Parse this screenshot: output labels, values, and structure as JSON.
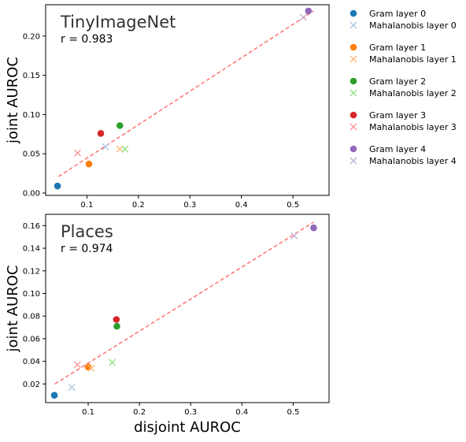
{
  "chart_data": [
    {
      "type": "scatter",
      "title": "TinyImageNet",
      "annotation": "r = 0.983",
      "xlabel": "",
      "ylabel": "joint AUROC",
      "xlim": [
        0.02,
        0.57
      ],
      "ylim": [
        -0.003,
        0.24
      ],
      "xticks": [
        0.1,
        0.2,
        0.3,
        0.4,
        0.5
      ],
      "xtick_labels": [
        "0.1",
        "0.2",
        "0.3",
        "0.4",
        "0.5"
      ],
      "yticks": [
        0.0,
        0.05,
        0.1,
        0.15,
        0.2
      ],
      "ytick_labels": [
        "0.00",
        "0.05",
        "0.10",
        "0.15",
        "0.20"
      ],
      "fit_line": {
        "x": [
          0.045,
          0.54
        ],
        "y": [
          0.021,
          0.232
        ]
      },
      "series": [
        {
          "name": "Gram layer 0",
          "marker": "circle",
          "x": [
            0.043
          ],
          "y": [
            0.009
          ]
        },
        {
          "name": "Mahalanobis layer 0",
          "marker": "x",
          "x": [
            0.136
          ],
          "y": [
            0.059
          ]
        },
        {
          "name": "Gram layer 1",
          "marker": "circle",
          "x": [
            0.104
          ],
          "y": [
            0.037
          ]
        },
        {
          "name": "Mahalanobis layer 1",
          "marker": "x",
          "x": [
            0.164
          ],
          "y": [
            0.056
          ]
        },
        {
          "name": "Gram layer 2",
          "marker": "circle",
          "x": [
            0.164
          ],
          "y": [
            0.086
          ]
        },
        {
          "name": "Mahalanobis layer 2",
          "marker": "x",
          "x": [
            0.174
          ],
          "y": [
            0.056
          ]
        },
        {
          "name": "Gram layer 3",
          "marker": "circle",
          "x": [
            0.127
          ],
          "y": [
            0.076
          ]
        },
        {
          "name": "Mahalanobis layer 3",
          "marker": "x",
          "x": [
            0.082
          ],
          "y": [
            0.051
          ]
        },
        {
          "name": "Gram layer 4",
          "marker": "circle",
          "x": [
            0.53
          ],
          "y": [
            0.232
          ]
        },
        {
          "name": "Mahalanobis layer 4",
          "marker": "x",
          "x": [
            0.52
          ],
          "y": [
            0.224
          ]
        }
      ]
    },
    {
      "type": "scatter",
      "title": "Places",
      "annotation": "r = 0.974",
      "xlabel": "disjoint AUROC",
      "ylabel": "joint AUROC",
      "xlim": [
        0.017,
        0.57
      ],
      "ylim": [
        0.0035,
        0.17
      ],
      "xticks": [
        0.1,
        0.2,
        0.3,
        0.4,
        0.5
      ],
      "xtick_labels": [
        "0.1",
        "0.2",
        "0.3",
        "0.4",
        "0.5"
      ],
      "yticks": [
        0.02,
        0.04,
        0.06,
        0.08,
        0.1,
        0.12,
        0.14,
        0.16
      ],
      "ytick_labels": [
        "0.02",
        "0.04",
        "0.06",
        "0.08",
        "0.10",
        "0.12",
        "0.14",
        "0.16"
      ],
      "fit_line": {
        "x": [
          0.035,
          0.54
        ],
        "y": [
          0.02,
          0.163
        ]
      },
      "series": [
        {
          "name": "Gram layer 0",
          "marker": "circle",
          "x": [
            0.034
          ],
          "y": [
            0.01
          ]
        },
        {
          "name": "Mahalanobis layer 0",
          "marker": "x",
          "x": [
            0.068
          ],
          "y": [
            0.017
          ]
        },
        {
          "name": "Gram layer 1",
          "marker": "circle",
          "x": [
            0.1
          ],
          "y": [
            0.035
          ]
        },
        {
          "name": "Mahalanobis layer 1",
          "marker": "x",
          "x": [
            0.106
          ],
          "y": [
            0.034
          ]
        },
        {
          "name": "Gram layer 2",
          "marker": "circle",
          "x": [
            0.156
          ],
          "y": [
            0.071
          ]
        },
        {
          "name": "Mahalanobis layer 2",
          "marker": "x",
          "x": [
            0.147
          ],
          "y": [
            0.039
          ]
        },
        {
          "name": "Gram layer 3",
          "marker": "circle",
          "x": [
            0.155
          ],
          "y": [
            0.077
          ]
        },
        {
          "name": "Mahalanobis layer 3",
          "marker": "x",
          "x": [
            0.079
          ],
          "y": [
            0.037
          ]
        },
        {
          "name": "Gram layer 4",
          "marker": "circle",
          "x": [
            0.54
          ],
          "y": [
            0.158
          ]
        },
        {
          "name": "Mahalanobis layer 4",
          "marker": "x",
          "x": [
            0.502
          ],
          "y": [
            0.151
          ]
        }
      ]
    }
  ],
  "colors": {
    "layer0_gram": "#1f77b4",
    "layer0_maha": "#aec7e8",
    "layer1_gram": "#ff7f0e",
    "layer1_maha": "#ffbb78",
    "layer2_gram": "#2ca02c",
    "layer2_maha": "#98df8a",
    "layer3_gram": "#d62728",
    "layer3_maha": "#ff9896",
    "layer4_gram": "#9467bd",
    "layer4_maha": "#c5b0d5",
    "fit_line": "#ff6b6b"
  }
}
